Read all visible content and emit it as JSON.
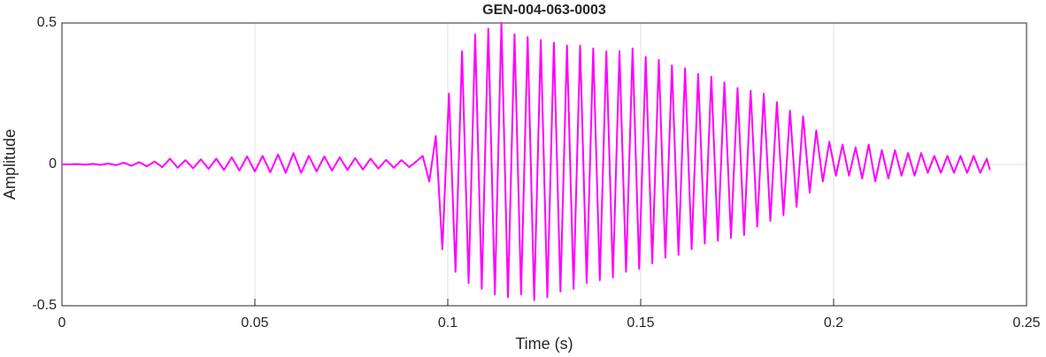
{
  "chart_data": {
    "type": "line",
    "title": "GEN-004-063-0003",
    "xlabel": "Time (s)",
    "ylabel": "Amplitude",
    "xlim": [
      0,
      0.25
    ],
    "ylim": [
      -0.5,
      0.5
    ],
    "xticks": [
      0,
      0.05,
      0.1,
      0.15,
      0.2,
      0.25
    ],
    "yticks": [
      -0.5,
      0,
      0.5
    ],
    "grid": true,
    "x": [
      0,
      0.002,
      0.004,
      0.006,
      0.008,
      0.01,
      0.012,
      0.014,
      0.016,
      0.018,
      0.02,
      0.022,
      0.024,
      0.026,
      0.028,
      0.03,
      0.032,
      0.034,
      0.036,
      0.038,
      0.04,
      0.042,
      0.044,
      0.046,
      0.048,
      0.05,
      0.052,
      0.054,
      0.056,
      0.058,
      0.06,
      0.062,
      0.064,
      0.066,
      0.068,
      0.07,
      0.072,
      0.074,
      0.076,
      0.078,
      0.08,
      0.082,
      0.084,
      0.086,
      0.088,
      0.09,
      0.092,
      0.0935,
      0.0952,
      0.0969,
      0.0986,
      0.1003,
      0.102,
      0.1037,
      0.1054,
      0.1071,
      0.1088,
      0.1105,
      0.1122,
      0.1139,
      0.1156,
      0.1173,
      0.119,
      0.1207,
      0.1224,
      0.1241,
      0.1258,
      0.1275,
      0.1292,
      0.1309,
      0.1326,
      0.1343,
      0.136,
      0.1377,
      0.1394,
      0.1411,
      0.1428,
      0.1445,
      0.1462,
      0.1479,
      0.1496,
      0.1513,
      0.153,
      0.1547,
      0.1564,
      0.1581,
      0.1598,
      0.1615,
      0.1632,
      0.1649,
      0.1666,
      0.1683,
      0.17,
      0.1717,
      0.1734,
      0.1751,
      0.1768,
      0.1785,
      0.1802,
      0.1819,
      0.1836,
      0.1853,
      0.187,
      0.1887,
      0.1904,
      0.1921,
      0.1938,
      0.1955,
      0.1972,
      0.1989,
      0.2006,
      0.2023,
      0.204,
      0.2057,
      0.2074,
      0.2091,
      0.2108,
      0.2125,
      0.2142,
      0.2159,
      0.2176,
      0.2193,
      0.221,
      0.2227,
      0.2244,
      0.2261,
      0.2278,
      0.2295,
      0.2312,
      0.2329,
      0.2346,
      0.2363,
      0.238,
      0.2397,
      0.2405
    ],
    "series": [
      {
        "color": "#ff00ff",
        "values": [
          0,
          0,
          0.001,
          -0.001,
          0.002,
          -0.002,
          0.003,
          -0.003,
          0.006,
          -0.005,
          0.008,
          -0.007,
          0.01,
          -0.01,
          0.02,
          -0.012,
          0.015,
          -0.014,
          0.018,
          -0.016,
          0.02,
          -0.02,
          0.025,
          -0.022,
          0.028,
          -0.025,
          0.03,
          -0.028,
          0.035,
          -0.03,
          0.04,
          -0.03,
          0.03,
          -0.025,
          0.028,
          -0.022,
          0.025,
          -0.02,
          0.022,
          -0.018,
          0.02,
          -0.015,
          0.016,
          -0.012,
          0.015,
          -0.01,
          0.012,
          0.03,
          -0.06,
          0.1,
          -0.3,
          0.25,
          -0.38,
          0.4,
          -0.42,
          0.46,
          -0.44,
          0.48,
          -0.46,
          0.5,
          -0.47,
          0.46,
          -0.46,
          0.45,
          -0.48,
          0.44,
          -0.47,
          0.43,
          -0.45,
          0.42,
          -0.44,
          0.42,
          -0.42,
          0.41,
          -0.41,
          0.4,
          -0.4,
          0.4,
          -0.38,
          0.41,
          -0.37,
          0.38,
          -0.35,
          0.37,
          -0.33,
          0.35,
          -0.32,
          0.34,
          -0.3,
          0.32,
          -0.28,
          0.31,
          -0.27,
          0.29,
          -0.26,
          0.27,
          -0.25,
          0.26,
          -0.22,
          0.25,
          -0.2,
          0.22,
          -0.18,
          0.19,
          -0.15,
          0.17,
          -0.1,
          0.12,
          -0.06,
          0.08,
          -0.04,
          0.07,
          -0.04,
          0.06,
          -0.05,
          0.07,
          -0.06,
          0.05,
          -0.05,
          0.05,
          -0.04,
          0.04,
          -0.04,
          0.04,
          -0.03,
          0.03,
          -0.03,
          0.03,
          -0.03,
          0.03,
          -0.03,
          0.03,
          -0.03,
          0.02,
          -0.02
        ]
      }
    ]
  }
}
